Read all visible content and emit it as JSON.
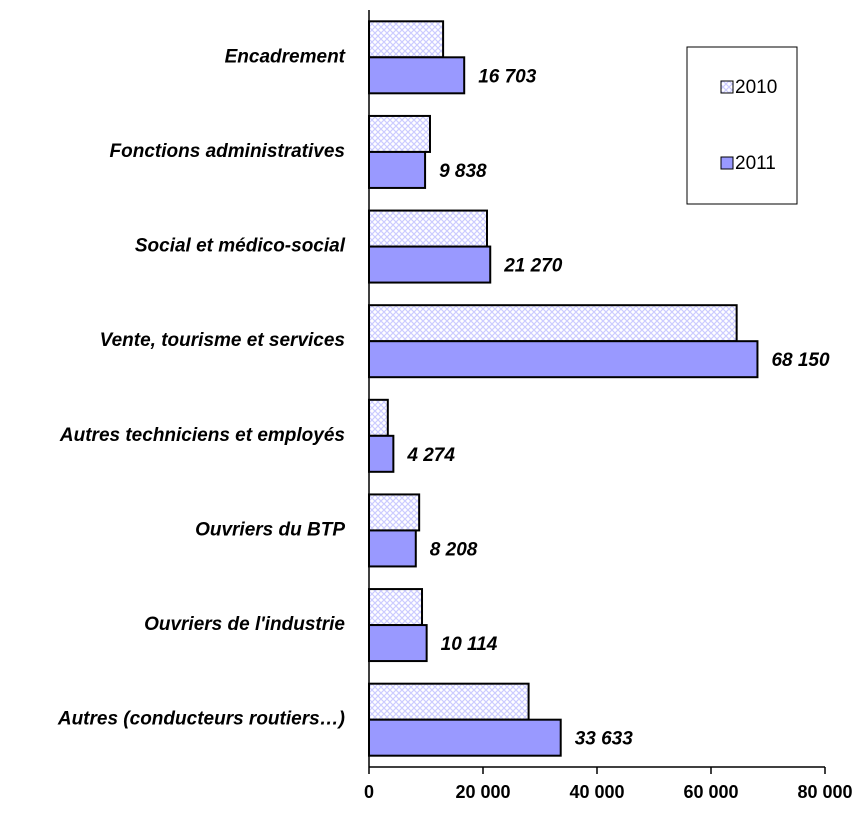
{
  "chart_data": {
    "type": "barh",
    "categories": [
      "Encadrement",
      "Fonctions administratives",
      "Social et médico-social",
      "Vente, tourisme et services",
      "Autres techniciens et employés",
      "Ouvriers du BTP",
      "Ouvriers de l'industrie",
      "Autres (conducteurs routiers…)"
    ],
    "series": [
      {
        "name": "2010",
        "color": "#ccccff",
        "pattern": "crosshatch",
        "values": [
          13000,
          10700,
          20700,
          64500,
          3300,
          8800,
          9300,
          28000
        ]
      },
      {
        "name": "2011",
        "color": "#9999ff",
        "values": [
          16703,
          9838,
          21270,
          68150,
          4274,
          8208,
          10114,
          33633
        ],
        "value_labels": [
          "16 703",
          "9 838",
          "21 270",
          "68 150",
          "4 274",
          "8 208",
          "10 114",
          "33 633"
        ]
      }
    ],
    "xlim": [
      0,
      80000
    ],
    "xticks": [
      0,
      {
        "value": 20000,
        "label": "20 000"
      },
      {
        "value": 40000,
        "label": "40 000"
      },
      {
        "value": 60000,
        "label": "60 000"
      },
      {
        "value": 80000,
        "label": "80 000"
      }
    ],
    "legend": "top-right"
  }
}
